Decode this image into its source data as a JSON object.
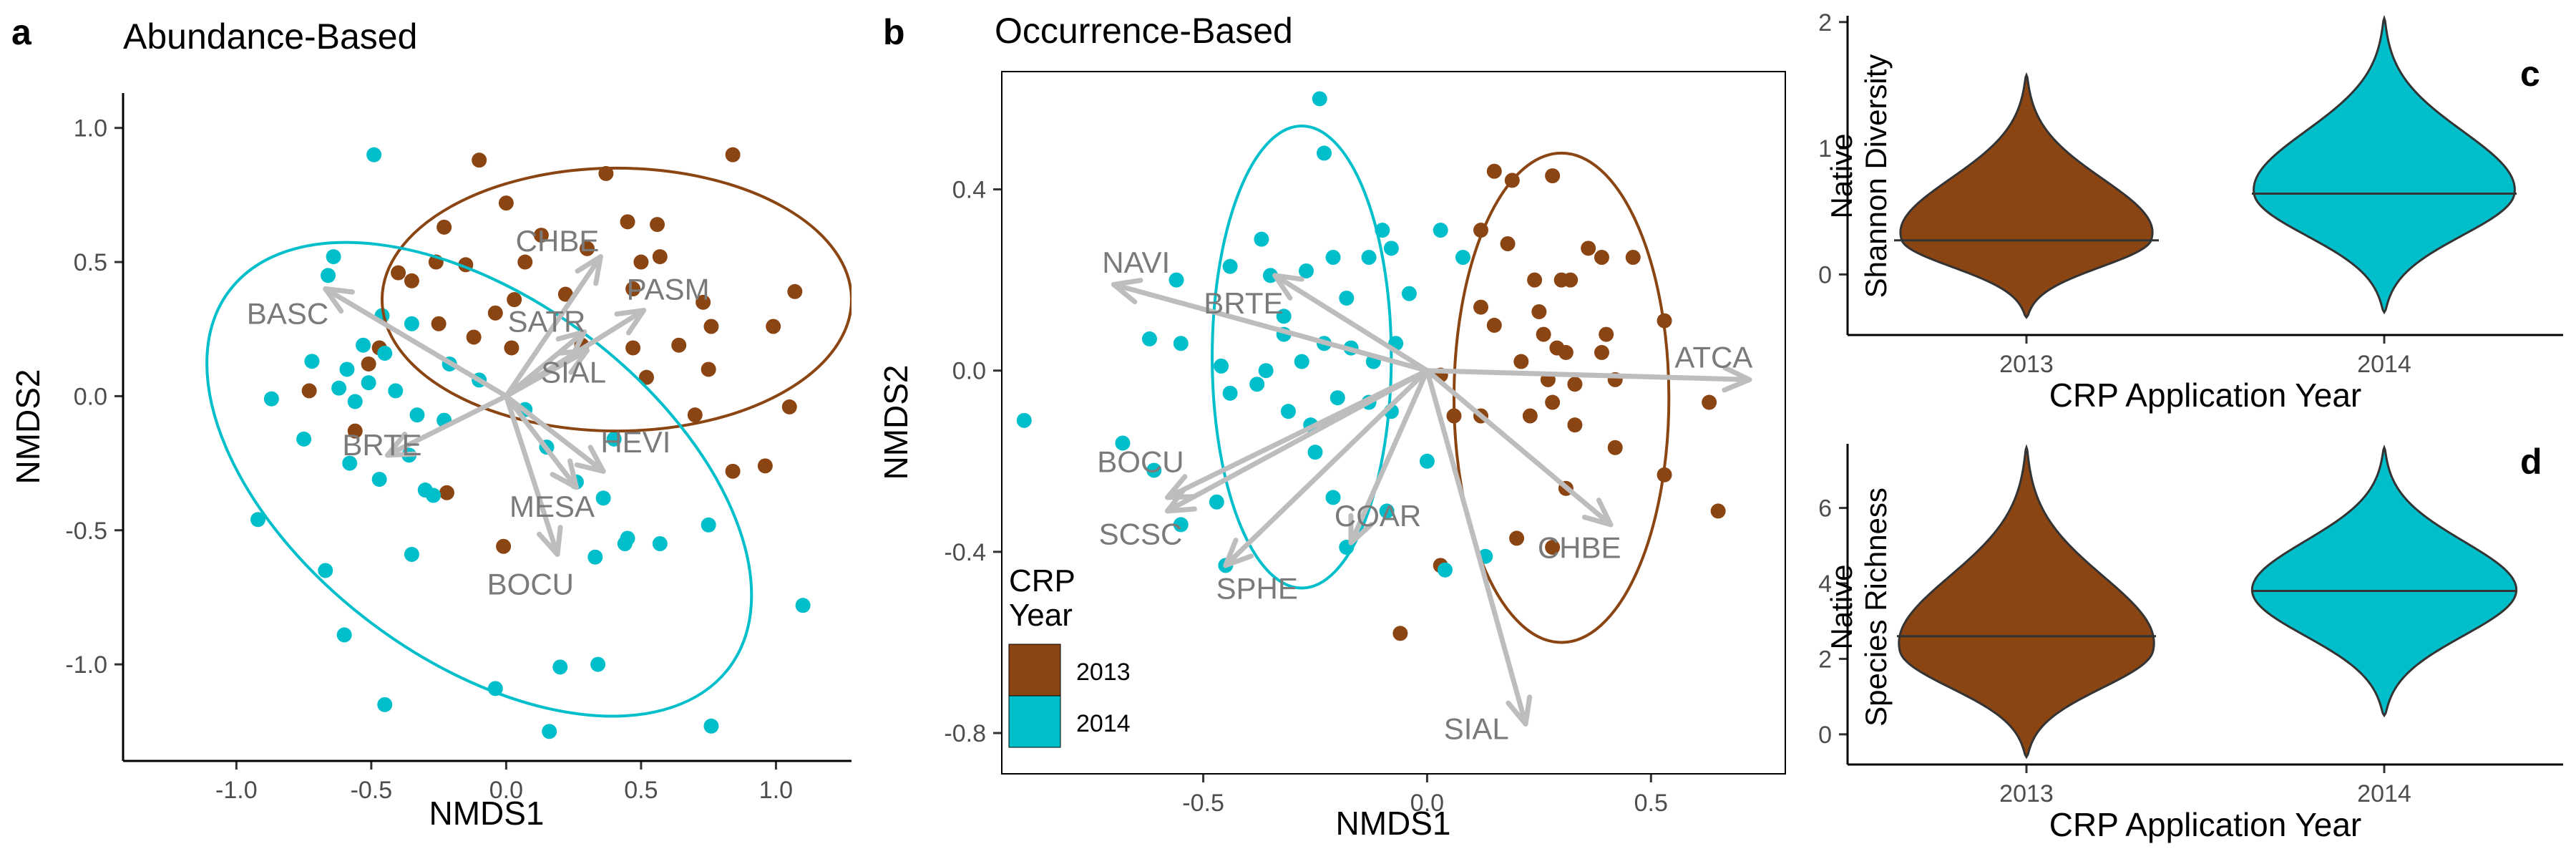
{
  "colors": {
    "y2013": "#8B4513",
    "y2014": "#00BFCB",
    "arrow": "#BDBDBD",
    "arrowText": "#7A7A7A"
  },
  "chart_data": [
    {
      "panel": "a",
      "type": "scatter",
      "title": "Abundance-Based",
      "xlabel": "NMDS1",
      "ylabel": "NMDS2",
      "xlim": [
        -1.42,
        1.28
      ],
      "ylim": [
        -1.36,
        1.13
      ],
      "xticks": [
        -1.0,
        -0.5,
        0.0,
        0.5,
        1.0
      ],
      "yticks": [
        -1.0,
        -0.5,
        0.0,
        0.5,
        1.0
      ],
      "xtick_labels": [
        "-1.0",
        "-0.5",
        "0.0",
        "0.5",
        "1.0"
      ],
      "ytick_labels": [
        "-1.0",
        "-0.5",
        "0.0",
        "0.5",
        "1.0"
      ],
      "series": [
        {
          "year": "2013",
          "points": [
            [
              -0.1,
              0.88
            ],
            [
              0.37,
              0.83
            ],
            [
              0.84,
              0.9
            ],
            [
              0.0,
              0.72
            ],
            [
              0.13,
              0.6
            ],
            [
              0.45,
              0.65
            ],
            [
              0.56,
              0.64
            ],
            [
              0.3,
              0.55
            ],
            [
              0.5,
              0.5
            ],
            [
              0.57,
              0.52
            ],
            [
              -0.23,
              0.63
            ],
            [
              0.07,
              0.5
            ],
            [
              -0.4,
              0.46
            ],
            [
              -0.26,
              0.5
            ],
            [
              -0.15,
              0.49
            ],
            [
              -0.35,
              0.43
            ],
            [
              0.03,
              0.36
            ],
            [
              0.22,
              0.38
            ],
            [
              0.47,
              0.4
            ],
            [
              0.73,
              0.35
            ],
            [
              1.07,
              0.39
            ],
            [
              -0.12,
              0.22
            ],
            [
              -0.04,
              0.31
            ],
            [
              -0.25,
              0.27
            ],
            [
              0.02,
              0.18
            ],
            [
              0.28,
              0.19
            ],
            [
              0.47,
              0.18
            ],
            [
              0.64,
              0.19
            ],
            [
              0.76,
              0.26
            ],
            [
              0.99,
              0.26
            ],
            [
              -0.73,
              0.02
            ],
            [
              -0.47,
              0.18
            ],
            [
              -0.51,
              0.12
            ],
            [
              0.52,
              0.07
            ],
            [
              0.75,
              0.1
            ],
            [
              1.05,
              -0.04
            ],
            [
              -0.56,
              -0.13
            ],
            [
              0.7,
              -0.07
            ],
            [
              0.96,
              -0.26
            ],
            [
              0.84,
              -0.28
            ],
            [
              -0.22,
              -0.36
            ],
            [
              -0.01,
              -0.56
            ]
          ]
        },
        {
          "year": "2014",
          "points": [
            [
              -0.49,
              0.9
            ],
            [
              -0.64,
              0.52
            ],
            [
              -0.66,
              0.45
            ],
            [
              -0.46,
              0.3
            ],
            [
              -0.35,
              0.27
            ],
            [
              -0.53,
              0.19
            ],
            [
              -0.72,
              0.13
            ],
            [
              -0.59,
              0.1
            ],
            [
              -0.45,
              0.16
            ],
            [
              -0.62,
              0.03
            ],
            [
              -0.51,
              0.05
            ],
            [
              -0.41,
              0.02
            ],
            [
              -0.21,
              0.12
            ],
            [
              -0.1,
              0.06
            ],
            [
              -0.87,
              -0.01
            ],
            [
              -0.56,
              -0.02
            ],
            [
              -0.33,
              -0.07
            ],
            [
              -0.23,
              -0.09
            ],
            [
              -0.75,
              -0.16
            ],
            [
              -0.58,
              -0.25
            ],
            [
              -0.36,
              -0.22
            ],
            [
              -0.47,
              -0.31
            ],
            [
              -0.3,
              -0.35
            ],
            [
              -0.27,
              -0.37
            ],
            [
              0.07,
              -0.05
            ],
            [
              0.15,
              -0.19
            ],
            [
              0.26,
              -0.32
            ],
            [
              0.4,
              -0.16
            ],
            [
              0.36,
              -0.38
            ],
            [
              0.44,
              -0.55
            ],
            [
              -0.92,
              -0.46
            ],
            [
              -0.67,
              -0.65
            ],
            [
              -0.35,
              -0.59
            ],
            [
              0.33,
              -0.6
            ],
            [
              0.45,
              -0.53
            ],
            [
              0.57,
              -0.55
            ],
            [
              0.75,
              -0.48
            ],
            [
              1.1,
              -0.78
            ],
            [
              -0.6,
              -0.89
            ],
            [
              -0.45,
              -1.15
            ],
            [
              -0.04,
              -1.09
            ],
            [
              0.2,
              -1.01
            ],
            [
              0.34,
              -1.0
            ],
            [
              0.16,
              -1.25
            ],
            [
              0.76,
              -1.23
            ]
          ]
        }
      ],
      "ellipses": [
        {
          "year": "2013",
          "center": [
            0.41,
            0.36
          ],
          "semi_axes": [
            0.87,
            0.49
          ],
          "angle_deg": 0
        },
        {
          "year": "2014",
          "center": [
            -0.1,
            -0.31
          ],
          "semi_axes": [
            1.16,
            0.67
          ],
          "angle_deg": -37
        }
      ],
      "vectors": [
        {
          "label": "BASC",
          "end": [
            -0.67,
            0.4
          ],
          "label_at": [
            -0.81,
            0.31
          ]
        },
        {
          "label": "CHBE",
          "end": [
            0.35,
            0.52
          ],
          "label_at": [
            0.19,
            0.58
          ]
        },
        {
          "label": "PASM",
          "end": [
            0.51,
            0.32
          ],
          "label_at": [
            0.6,
            0.4
          ]
        },
        {
          "label": "SATR",
          "end": [
            0.29,
            0.24
          ],
          "label_at": [
            0.15,
            0.28
          ]
        },
        {
          "label": "SIAL",
          "end": [
            0.3,
            0.17
          ],
          "label_at": [
            0.25,
            0.09
          ]
        },
        {
          "label": "BRTE",
          "end": [
            -0.44,
            -0.22
          ],
          "label_at": [
            -0.46,
            -0.18
          ]
        },
        {
          "label": "HEVI",
          "end": [
            0.36,
            -0.28
          ],
          "label_at": [
            0.48,
            -0.17
          ]
        },
        {
          "label": "MESA",
          "end": [
            0.26,
            -0.34
          ],
          "label_at": [
            0.17,
            -0.41
          ]
        },
        {
          "label": "BOCU",
          "end": [
            0.19,
            -0.59
          ],
          "label_at": [
            0.09,
            -0.7
          ]
        }
      ]
    },
    {
      "panel": "b",
      "type": "scatter",
      "title": "Occurrence-Based",
      "xlabel": "NMDS1",
      "ylabel": "NMDS2",
      "xlim": [
        -0.95,
        0.8
      ],
      "ylim": [
        -0.89,
        0.66
      ],
      "xticks": [
        -0.5,
        0.0,
        0.5
      ],
      "yticks": [
        -0.8,
        -0.4,
        0.0,
        0.4
      ],
      "xtick_labels": [
        "-0.5",
        "0.0",
        "0.5"
      ],
      "ytick_labels": [
        "-0.8",
        "-0.4",
        "0.0",
        "0.4"
      ],
      "series": [
        {
          "year": "2013",
          "points": [
            [
              0.15,
              0.44
            ],
            [
              0.19,
              0.42
            ],
            [
              0.28,
              0.43
            ],
            [
              0.12,
              0.31
            ],
            [
              0.18,
              0.28
            ],
            [
              0.36,
              0.27
            ],
            [
              0.39,
              0.25
            ],
            [
              0.46,
              0.25
            ],
            [
              0.24,
              0.2
            ],
            [
              0.3,
              0.2
            ],
            [
              0.12,
              0.14
            ],
            [
              0.15,
              0.1
            ],
            [
              0.25,
              0.13
            ],
            [
              0.32,
              0.2
            ],
            [
              0.26,
              0.08
            ],
            [
              0.29,
              0.05
            ],
            [
              0.4,
              0.08
            ],
            [
              0.53,
              0.11
            ],
            [
              0.21,
              0.02
            ],
            [
              0.31,
              0.04
            ],
            [
              0.39,
              0.04
            ],
            [
              0.03,
              -0.01
            ],
            [
              0.27,
              -0.02
            ],
            [
              0.33,
              -0.03
            ],
            [
              0.42,
              -0.02
            ],
            [
              0.63,
              -0.07
            ],
            [
              0.06,
              -0.1
            ],
            [
              0.12,
              -0.1
            ],
            [
              0.23,
              -0.1
            ],
            [
              0.28,
              -0.07
            ],
            [
              0.33,
              -0.12
            ],
            [
              0.42,
              -0.17
            ],
            [
              0.31,
              -0.26
            ],
            [
              0.53,
              -0.23
            ],
            [
              0.65,
              -0.31
            ],
            [
              0.2,
              -0.37
            ],
            [
              0.28,
              -0.39
            ],
            [
              0.03,
              -0.43
            ],
            [
              -0.06,
              -0.58
            ]
          ]
        },
        {
          "year": "2014",
          "points": [
            [
              -0.24,
              0.6
            ],
            [
              -0.23,
              0.48
            ],
            [
              -0.37,
              0.29
            ],
            [
              -0.1,
              0.31
            ],
            [
              0.03,
              0.31
            ],
            [
              -0.21,
              0.25
            ],
            [
              -0.13,
              0.25
            ],
            [
              -0.44,
              0.23
            ],
            [
              -0.35,
              0.21
            ],
            [
              -0.27,
              0.22
            ],
            [
              -0.56,
              0.2
            ],
            [
              -0.08,
              0.27
            ],
            [
              0.08,
              0.25
            ],
            [
              -0.18,
              0.16
            ],
            [
              -0.04,
              0.17
            ],
            [
              -0.32,
              0.12
            ],
            [
              -0.62,
              0.07
            ],
            [
              -0.55,
              0.06
            ],
            [
              -0.32,
              0.08
            ],
            [
              -0.23,
              0.06
            ],
            [
              -0.17,
              0.05
            ],
            [
              -0.07,
              0.06
            ],
            [
              -0.28,
              0.02
            ],
            [
              -0.12,
              0.02
            ],
            [
              -0.46,
              0.01
            ],
            [
              -0.38,
              -0.03
            ],
            [
              -0.36,
              0.0
            ],
            [
              -0.44,
              -0.05
            ],
            [
              -0.2,
              -0.06
            ],
            [
              -0.13,
              -0.07
            ],
            [
              -0.31,
              -0.09
            ],
            [
              -0.26,
              -0.12
            ],
            [
              -0.08,
              -0.09
            ],
            [
              -0.9,
              -0.11
            ],
            [
              -0.68,
              -0.16
            ],
            [
              -0.61,
              -0.22
            ],
            [
              -0.25,
              -0.18
            ],
            [
              -0.21,
              -0.28
            ],
            [
              -0.47,
              -0.29
            ],
            [
              -0.55,
              -0.34
            ],
            [
              -0.09,
              -0.31
            ],
            [
              0.0,
              -0.2
            ],
            [
              -0.18,
              -0.39
            ],
            [
              -0.45,
              -0.43
            ],
            [
              0.13,
              -0.41
            ],
            [
              0.04,
              -0.44
            ]
          ]
        }
      ],
      "ellipses": [
        {
          "year": "2013",
          "center": [
            0.3,
            -0.06
          ],
          "semi_axes": [
            0.24,
            0.54
          ],
          "angle_deg": 0
        },
        {
          "year": "2014",
          "center": [
            -0.28,
            0.03
          ],
          "semi_axes": [
            0.2,
            0.51
          ],
          "angle_deg": 0
        }
      ],
      "vectors": [
        {
          "label": "NAVI",
          "end": [
            -0.7,
            0.19
          ],
          "label_at": [
            -0.65,
            0.24
          ]
        },
        {
          "label": "BRTE",
          "end": [
            -0.34,
            0.21
          ],
          "label_at": [
            -0.41,
            0.15
          ]
        },
        {
          "label": "ATCA",
          "end": [
            0.72,
            -0.02
          ],
          "label_at": [
            0.64,
            0.03
          ]
        },
        {
          "label": "BOCU",
          "end": [
            -0.58,
            -0.28
          ],
          "label_at": [
            -0.64,
            -0.2
          ]
        },
        {
          "label": "SCSC",
          "end": [
            -0.58,
            -0.31
          ],
          "label_at": [
            -0.64,
            -0.36
          ]
        },
        {
          "label": "SPHE",
          "end": [
            -0.45,
            -0.43
          ],
          "label_at": [
            -0.38,
            -0.48
          ]
        },
        {
          "label": "COAR",
          "end": [
            -0.17,
            -0.38
          ],
          "label_at": [
            -0.11,
            -0.32
          ]
        },
        {
          "label": "CHBE",
          "end": [
            0.41,
            -0.34
          ],
          "label_at": [
            0.34,
            -0.39
          ]
        },
        {
          "label": "SIAL",
          "end": [
            0.22,
            -0.78
          ],
          "label_at": [
            0.11,
            -0.79
          ]
        }
      ],
      "legend": {
        "title_line1": "CRP",
        "title_line2": "Year",
        "entries": [
          "2013",
          "2014"
        ],
        "placement": "bottom-left"
      }
    },
    {
      "panel": "c",
      "type": "violin",
      "xlabel": "CRP Application Year",
      "ylabel_line1": "Native",
      "ylabel_line2": "Shannon Diversity",
      "ylim": [
        -0.48,
        2.05
      ],
      "yticks": [
        0,
        1,
        2
      ],
      "ytick_labels": [
        "0",
        "1",
        "2"
      ],
      "categories": [
        "2013",
        "2014"
      ],
      "violins": [
        {
          "category": "2013",
          "min": -0.34,
          "max": 1.58,
          "median": 0.27,
          "peak": 0.27
        },
        {
          "category": "2014",
          "min": -0.3,
          "max": 2.03,
          "median": 0.64,
          "peak": 0.64
        }
      ]
    },
    {
      "panel": "d",
      "type": "violin",
      "xlabel": "CRP Application Year",
      "ylabel_line1": "Native",
      "ylabel_line2": "Species Richness",
      "ylim": [
        -0.8,
        7.7
      ],
      "yticks": [
        0,
        2,
        4,
        6
      ],
      "ytick_labels": [
        "0",
        "2",
        "4",
        "6"
      ],
      "categories": [
        "2013",
        "2014"
      ],
      "violins": [
        {
          "category": "2013",
          "min": -0.6,
          "max": 7.6,
          "median": 2.6,
          "peak": 2.2
        },
        {
          "category": "2014",
          "min": 0.5,
          "max": 7.6,
          "median": 3.8,
          "peak": 3.8
        }
      ]
    }
  ],
  "panel_letters": {
    "a": "a",
    "b": "b",
    "c": "c",
    "d": "d"
  }
}
